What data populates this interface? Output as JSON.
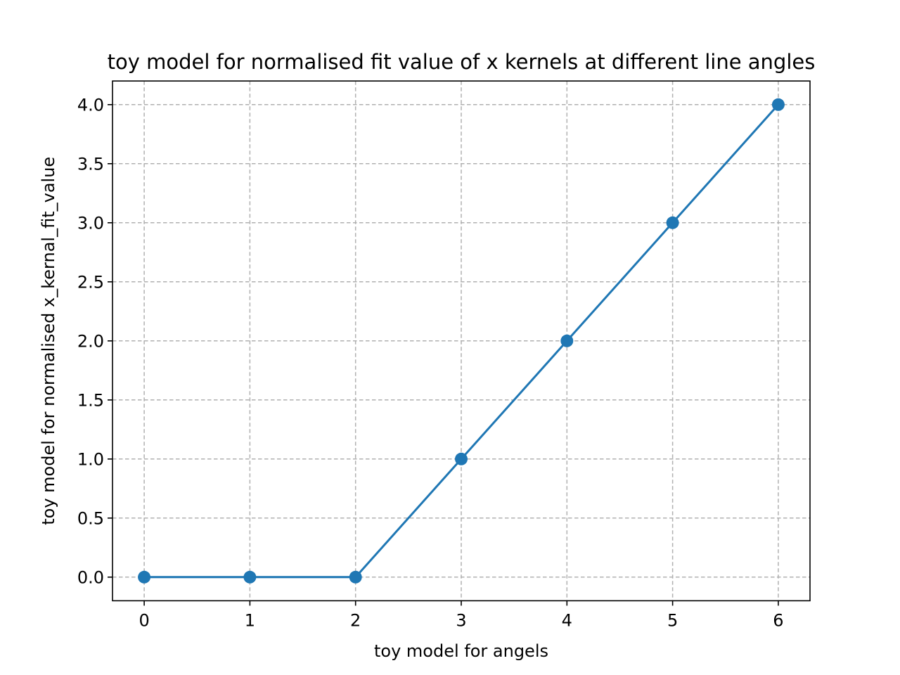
{
  "chart_data": {
    "type": "line",
    "title": "toy model for normalised fit value of x kernels at different line angles",
    "xlabel": "toy model for angels",
    "ylabel": "toy model for normalised x_kernal_fit_value",
    "x": [
      0,
      1,
      2,
      3,
      4,
      5,
      6
    ],
    "series": [
      {
        "values": [
          0,
          0,
          0,
          1,
          2,
          3,
          4
        ],
        "color": "#1f77b4",
        "marker": "circle"
      }
    ],
    "xlim": [
      -0.3,
      6.3
    ],
    "ylim": [
      -0.2,
      4.2
    ],
    "xticks": [
      0,
      1,
      2,
      3,
      4,
      5,
      6
    ],
    "xtick_labels": [
      "0",
      "1",
      "2",
      "3",
      "4",
      "5",
      "6"
    ],
    "yticks": [
      0.0,
      0.5,
      1.0,
      1.5,
      2.0,
      2.5,
      3.0,
      3.5,
      4.0
    ],
    "ytick_labels": [
      "0.0",
      "0.5",
      "1.0",
      "1.5",
      "2.0",
      "2.5",
      "3.0",
      "3.5",
      "4.0"
    ],
    "grid": true,
    "legend": "none"
  }
}
